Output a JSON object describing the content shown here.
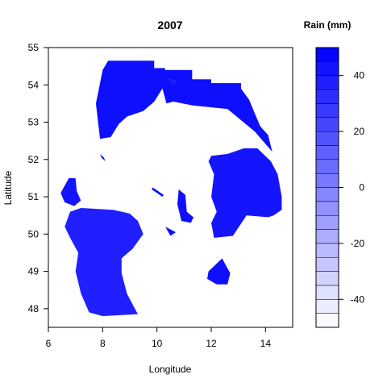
{
  "chart_data": {
    "type": "heatmap",
    "subtype": "filled-contour-map",
    "title": "2007",
    "xlabel": "Longitude",
    "ylabel": "Latitude",
    "xlim": [
      6,
      15
    ],
    "ylim": [
      47.5,
      55
    ],
    "x_ticks": [
      6,
      8,
      10,
      12,
      14
    ],
    "y_ticks": [
      48,
      49,
      50,
      51,
      52,
      53,
      54,
      55
    ],
    "grid": false,
    "colorbar": {
      "title": "Rain (mm)",
      "min": -50,
      "max": 50,
      "step": 5,
      "ticks": [
        -40,
        -20,
        0,
        20,
        40
      ],
      "low_color": "#ffffff",
      "high_color": "#0000ff"
    },
    "regions": [
      {
        "name": "north",
        "value": 44,
        "points": [
          [
            8.2,
            54.65
          ],
          [
            9.9,
            54.65
          ],
          [
            9.9,
            54.45
          ],
          [
            10.3,
            54.45
          ],
          [
            10.3,
            54.4
          ],
          [
            11.3,
            54.4
          ],
          [
            11.3,
            54.15
          ],
          [
            12.0,
            54.15
          ],
          [
            12.0,
            54.05
          ],
          [
            13.1,
            54.05
          ],
          [
            13.1,
            53.9
          ],
          [
            13.4,
            53.6
          ],
          [
            13.8,
            52.9
          ],
          [
            14.1,
            52.65
          ],
          [
            14.25,
            52.2
          ],
          [
            13.6,
            52.75
          ],
          [
            12.6,
            53.35
          ],
          [
            11.3,
            53.45
          ],
          [
            10.6,
            53.55
          ],
          [
            10.35,
            53.5
          ],
          [
            10.2,
            53.9
          ],
          [
            9.9,
            53.55
          ],
          [
            9.5,
            53.3
          ],
          [
            8.9,
            53.15
          ],
          [
            8.6,
            52.95
          ],
          [
            8.3,
            52.6
          ],
          [
            7.9,
            52.55
          ],
          [
            7.75,
            53.5
          ],
          [
            8.0,
            54.4
          ],
          [
            8.2,
            54.65
          ]
        ]
      },
      {
        "name": "east",
        "value": 42,
        "points": [
          [
            12.0,
            52.1
          ],
          [
            12.6,
            52.15
          ],
          [
            13.2,
            52.3
          ],
          [
            13.7,
            52.3
          ],
          [
            14.2,
            51.95
          ],
          [
            14.45,
            51.6
          ],
          [
            14.6,
            51.0
          ],
          [
            14.6,
            50.65
          ],
          [
            14.3,
            50.5
          ],
          [
            14.1,
            50.45
          ],
          [
            13.3,
            50.5
          ],
          [
            12.8,
            49.95
          ],
          [
            12.1,
            49.9
          ],
          [
            12.0,
            50.3
          ],
          [
            12.2,
            50.6
          ],
          [
            12.0,
            51.0
          ],
          [
            12.1,
            51.6
          ],
          [
            11.9,
            51.95
          ],
          [
            12.0,
            52.1
          ]
        ]
      },
      {
        "name": "southwest",
        "value": 38,
        "points": [
          [
            6.8,
            50.6
          ],
          [
            7.2,
            50.7
          ],
          [
            8.4,
            50.65
          ],
          [
            9.0,
            50.55
          ],
          [
            9.3,
            50.35
          ],
          [
            9.5,
            50.0
          ],
          [
            9.1,
            49.6
          ],
          [
            8.7,
            49.35
          ],
          [
            8.7,
            48.95
          ],
          [
            8.9,
            48.4
          ],
          [
            9.3,
            47.85
          ],
          [
            8.0,
            47.8
          ],
          [
            7.5,
            47.9
          ],
          [
            7.2,
            48.4
          ],
          [
            7.0,
            49.0
          ],
          [
            7.1,
            49.5
          ],
          [
            6.8,
            49.9
          ],
          [
            6.6,
            50.2
          ],
          [
            6.8,
            50.6
          ]
        ]
      },
      {
        "name": "west-small",
        "value": 42,
        "points": [
          [
            6.45,
            51.1
          ],
          [
            6.75,
            51.5
          ],
          [
            7.0,
            51.5
          ],
          [
            7.05,
            51.15
          ],
          [
            7.2,
            50.9
          ],
          [
            6.95,
            50.75
          ],
          [
            6.6,
            50.85
          ],
          [
            6.45,
            51.1
          ]
        ]
      },
      {
        "name": "center-small",
        "value": 44,
        "points": [
          [
            10.8,
            51.2
          ],
          [
            11.05,
            51.05
          ],
          [
            11.1,
            50.6
          ],
          [
            11.35,
            50.45
          ],
          [
            11.25,
            50.3
          ],
          [
            10.9,
            50.35
          ],
          [
            10.75,
            50.8
          ],
          [
            10.8,
            51.2
          ]
        ]
      },
      {
        "name": "bavaria-blob",
        "value": 44,
        "points": [
          [
            12.4,
            49.35
          ],
          [
            12.7,
            48.95
          ],
          [
            12.6,
            48.65
          ],
          [
            12.2,
            48.65
          ],
          [
            11.85,
            48.8
          ],
          [
            11.9,
            49.0
          ],
          [
            12.4,
            49.35
          ]
        ]
      },
      {
        "name": "wedge",
        "value": 44,
        "points": [
          [
            10.3,
            50.2
          ],
          [
            10.7,
            50.05
          ],
          [
            10.5,
            49.95
          ],
          [
            10.3,
            50.2
          ]
        ]
      },
      {
        "name": "dash",
        "value": 44,
        "points": [
          [
            9.8,
            51.2
          ],
          [
            10.2,
            51.0
          ],
          [
            10.25,
            51.05
          ],
          [
            9.85,
            51.25
          ],
          [
            9.8,
            51.2
          ]
        ]
      },
      {
        "name": "sliver",
        "value": 44,
        "points": [
          [
            7.9,
            52.15
          ],
          [
            8.05,
            52.05
          ],
          [
            8.1,
            51.95
          ],
          [
            7.95,
            52.05
          ],
          [
            7.9,
            52.15
          ]
        ]
      },
      {
        "name": "north-islet",
        "value": 44,
        "points": [
          [
            10.45,
            54.15
          ],
          [
            10.7,
            54.1
          ],
          [
            10.6,
            54.0
          ],
          [
            10.45,
            54.15
          ]
        ]
      }
    ]
  }
}
